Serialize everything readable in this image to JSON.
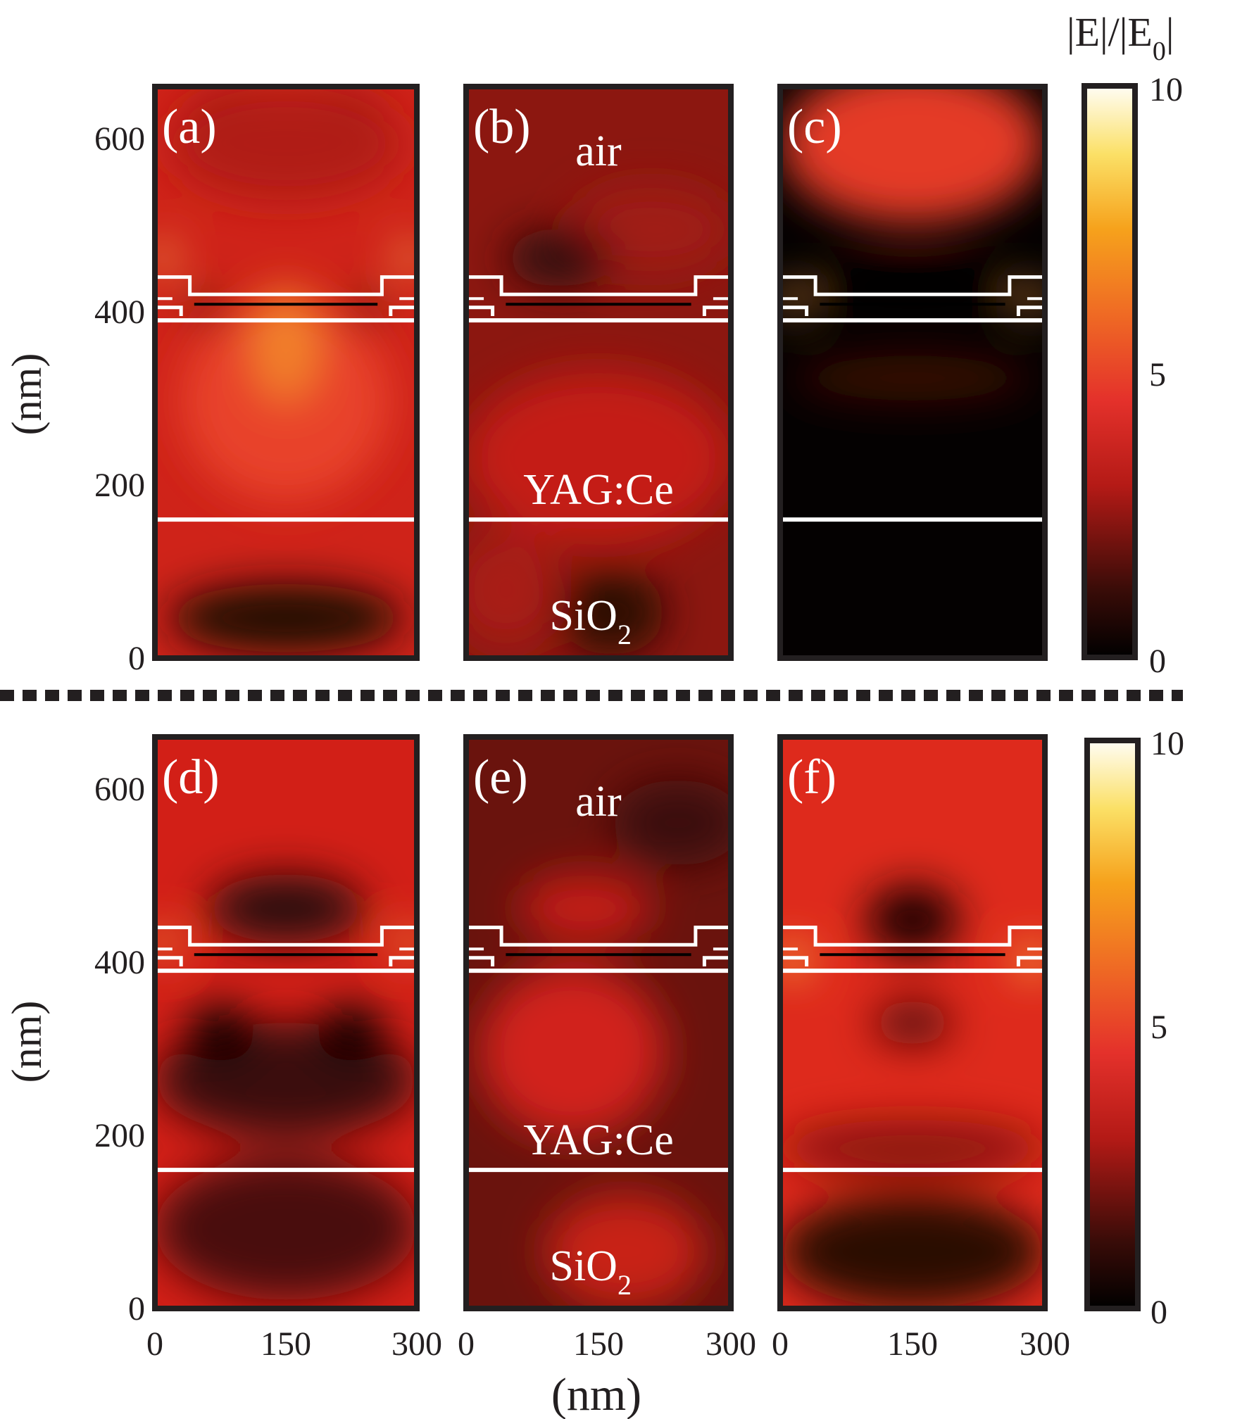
{
  "figure": {
    "colorbar_title_base": "|E|/|E",
    "colorbar_title_sub": "0",
    "colorbar_title_end": "|",
    "bottom_xlabel": "(nm)",
    "row_ylabel": "(nm)"
  },
  "chart_data": [
    {
      "type": "heatmap",
      "panel_label": "(a)",
      "x_ticks": [],
      "y_ticks": [
        "0",
        "200",
        "400",
        "600"
      ],
      "xlim": [
        0,
        300
      ],
      "ylim": [
        0,
        660
      ],
      "material_labels": [],
      "interfaces_nm": [
        160,
        390
      ],
      "colorbar": {
        "min": 0,
        "max": 10,
        "ticks": [
          "0",
          "5",
          "10"
        ]
      },
      "profile": "a"
    },
    {
      "type": "heatmap",
      "panel_label": "(b)",
      "x_ticks": [],
      "y_ticks": [],
      "xlim": [
        0,
        300
      ],
      "ylim": [
        0,
        660
      ],
      "material_labels": [
        {
          "text": "air",
          "sub": ""
        },
        {
          "text": "YAG:Ce",
          "sub": ""
        },
        {
          "text": "SiO",
          "sub": "2"
        }
      ],
      "interfaces_nm": [
        160,
        390
      ],
      "profile": "b"
    },
    {
      "type": "heatmap",
      "panel_label": "(c)",
      "x_ticks": [],
      "y_ticks": [],
      "xlim": [
        0,
        300
      ],
      "ylim": [
        0,
        660
      ],
      "material_labels": [],
      "interfaces_nm": [
        160,
        390
      ],
      "profile": "c"
    },
    {
      "type": "heatmap",
      "panel_label": "(d)",
      "x_ticks": [
        "0",
        "150",
        "300"
      ],
      "y_ticks": [
        "0",
        "200",
        "400",
        "600"
      ],
      "xlim": [
        0,
        300
      ],
      "ylim": [
        0,
        660
      ],
      "material_labels": [],
      "interfaces_nm": [
        160,
        390
      ],
      "colorbar": {
        "min": 0,
        "max": 10,
        "ticks": [
          "0",
          "5",
          "10"
        ]
      },
      "profile": "d"
    },
    {
      "type": "heatmap",
      "panel_label": "(e)",
      "x_ticks": [
        "0",
        "150",
        "300"
      ],
      "y_ticks": [],
      "xlim": [
        0,
        300
      ],
      "ylim": [
        0,
        660
      ],
      "material_labels": [
        {
          "text": "air",
          "sub": ""
        },
        {
          "text": "YAG:Ce",
          "sub": ""
        },
        {
          "text": "SiO",
          "sub": "2"
        }
      ],
      "interfaces_nm": [
        160,
        390
      ],
      "profile": "e"
    },
    {
      "type": "heatmap",
      "panel_label": "(f)",
      "x_ticks": [
        "0",
        "150",
        "300"
      ],
      "y_ticks": [],
      "xlim": [
        0,
        300
      ],
      "ylim": [
        0,
        660
      ],
      "material_labels": [],
      "interfaces_nm": [
        160,
        390
      ],
      "profile": "f"
    }
  ]
}
